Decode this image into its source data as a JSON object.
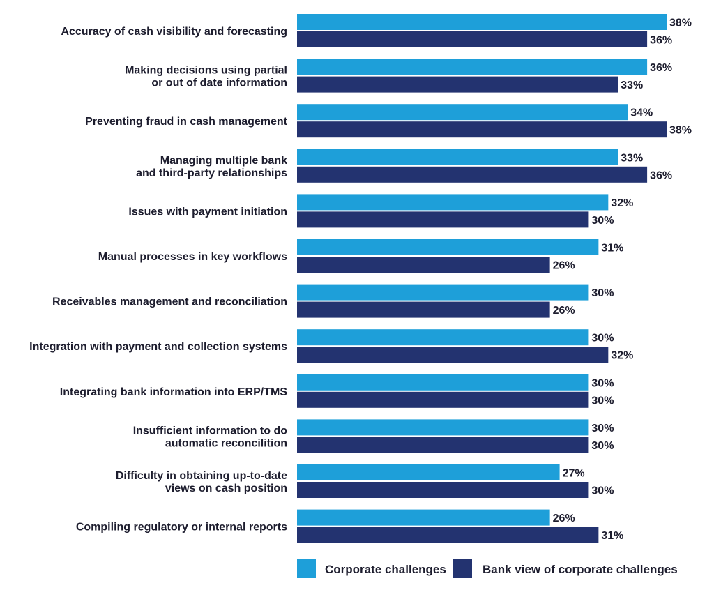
{
  "chart_data": {
    "type": "bar",
    "orientation": "horizontal",
    "categories": [
      "Accuracy of cash visibility and forecasting",
      "Making decisions using partial\nor out of date information",
      "Preventing fraud in cash management",
      "Managing multiple bank\nand third-party relationships",
      "Issues with payment initiation",
      "Manual processes in key workflows",
      "Receivables management and reconciliation",
      "Integration with payment and collection systems",
      "Integrating bank information into ERP/TMS",
      "Insufficient information to do\nautomatic reconcilition",
      "Difficulty in obtaining up-to-date\nviews on cash position",
      "Compiling regulatory or internal reports"
    ],
    "series": [
      {
        "name": "Corporate challenges",
        "color": "#1e9fd9",
        "values": [
          38,
          36,
          34,
          33,
          32,
          31,
          30,
          30,
          30,
          30,
          27,
          26
        ],
        "labels": [
          "38%",
          "36%",
          "34%",
          "33%",
          "32%",
          "31%",
          "30%",
          "30%",
          "30%",
          "30%",
          "27%",
          "26%"
        ]
      },
      {
        "name": "Bank view of corporate challenges",
        "color": "#233370",
        "values": [
          36,
          33,
          38,
          36,
          30,
          26,
          26,
          32,
          30,
          30,
          30,
          31
        ],
        "labels": [
          "36%",
          "33%",
          "38%",
          "36%",
          "30%",
          "26%",
          "26%",
          "32%",
          "30%",
          "30%",
          "30%",
          "31%"
        ]
      }
    ],
    "xlim": [
      0,
      38
    ],
    "grid": false,
    "legend_position": "bottom"
  }
}
